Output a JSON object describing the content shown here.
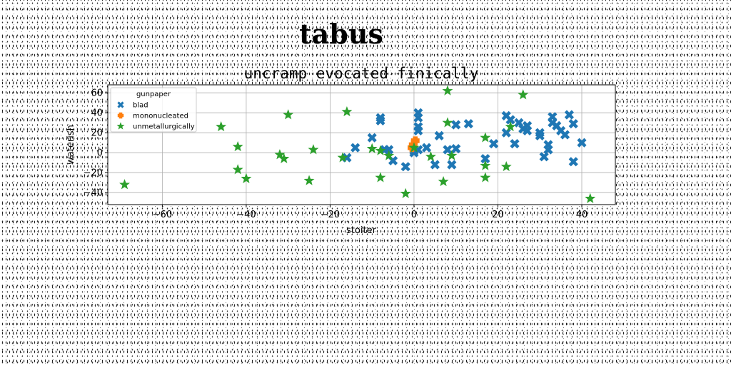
{
  "figure": {
    "suptitle": "tabus"
  },
  "chart_data": {
    "type": "scatter",
    "title": "uncramp evocated finically",
    "xlabel": "stoiter",
    "ylabel": "waterish",
    "xlim": [
      -73,
      48
    ],
    "ylim": [
      -52,
      68
    ],
    "xticks": [
      -60,
      -40,
      -20,
      0,
      20,
      40
    ],
    "xtick_labels": [
      "−60",
      "−40",
      "−20",
      "0",
      "20",
      "40"
    ],
    "yticks": [
      -40,
      -20,
      0,
      20,
      40,
      60
    ],
    "ytick_labels": [
      "−40",
      "−20",
      "0",
      "20",
      "40",
      "60"
    ],
    "grid": true,
    "legend": {
      "placement": "top-left",
      "title": "gunpaper",
      "entries": [
        "blad",
        "mononucleated",
        "unmetallurgically"
      ]
    },
    "series": [
      {
        "name": "blad",
        "marker": "X",
        "color": "#1f77b4",
        "points": [
          [
            -14,
            5
          ],
          [
            -16,
            -5
          ],
          [
            -10,
            15
          ],
          [
            -8,
            35
          ],
          [
            -8,
            32
          ],
          [
            -7,
            3
          ],
          [
            -6,
            3
          ],
          [
            -5,
            -8
          ],
          [
            -2,
            -14
          ],
          [
            0,
            0
          ],
          [
            0,
            2
          ],
          [
            1,
            40
          ],
          [
            1,
            35
          ],
          [
            1,
            26
          ],
          [
            1,
            22
          ],
          [
            1,
            3
          ],
          [
            3,
            5
          ],
          [
            5,
            -12
          ],
          [
            6,
            17
          ],
          [
            8,
            3
          ],
          [
            9,
            -12
          ],
          [
            10,
            4
          ],
          [
            10,
            28
          ],
          [
            13,
            29
          ],
          [
            17,
            -6
          ],
          [
            19,
            9
          ],
          [
            22,
            20
          ],
          [
            22,
            37
          ],
          [
            23,
            33
          ],
          [
            24,
            9
          ],
          [
            25,
            30
          ],
          [
            26,
            24
          ],
          [
            27,
            22
          ],
          [
            27,
            27
          ],
          [
            30,
            17
          ],
          [
            30,
            20
          ],
          [
            31,
            -4
          ],
          [
            32,
            8
          ],
          [
            32,
            3
          ],
          [
            33,
            30
          ],
          [
            33,
            36
          ],
          [
            34,
            27
          ],
          [
            35,
            22
          ],
          [
            36,
            18
          ],
          [
            37,
            38
          ],
          [
            38,
            29
          ],
          [
            38,
            -9
          ],
          [
            40,
            10
          ]
        ]
      },
      {
        "name": "mononucleated",
        "marker": "+",
        "color": "#ff7f0e",
        "points": [
          [
            -0.2,
            8
          ],
          [
            0.3,
            12
          ],
          [
            -0.5,
            5
          ]
        ]
      },
      {
        "name": "unmetallurgically",
        "marker": "*",
        "color": "#2ca02c",
        "points": [
          [
            -69,
            -32
          ],
          [
            -46,
            26
          ],
          [
            -42,
            6
          ],
          [
            -42,
            -17
          ],
          [
            -40,
            -26
          ],
          [
            -32,
            -2
          ],
          [
            -31,
            -6
          ],
          [
            -30,
            38
          ],
          [
            -24,
            3
          ],
          [
            -25,
            -28
          ],
          [
            -17,
            -5
          ],
          [
            -16,
            41
          ],
          [
            -10,
            4
          ],
          [
            -8,
            2
          ],
          [
            -8,
            -25
          ],
          [
            -6,
            -3
          ],
          [
            -2,
            -41
          ],
          [
            0,
            5
          ],
          [
            4,
            -4
          ],
          [
            7,
            -29
          ],
          [
            8,
            30
          ],
          [
            8,
            62
          ],
          [
            9,
            -3
          ],
          [
            17,
            -25
          ],
          [
            17,
            -13
          ],
          [
            17,
            15
          ],
          [
            22,
            -14
          ],
          [
            23,
            26
          ],
          [
            26,
            58
          ],
          [
            42,
            -46
          ]
        ]
      }
    ]
  }
}
